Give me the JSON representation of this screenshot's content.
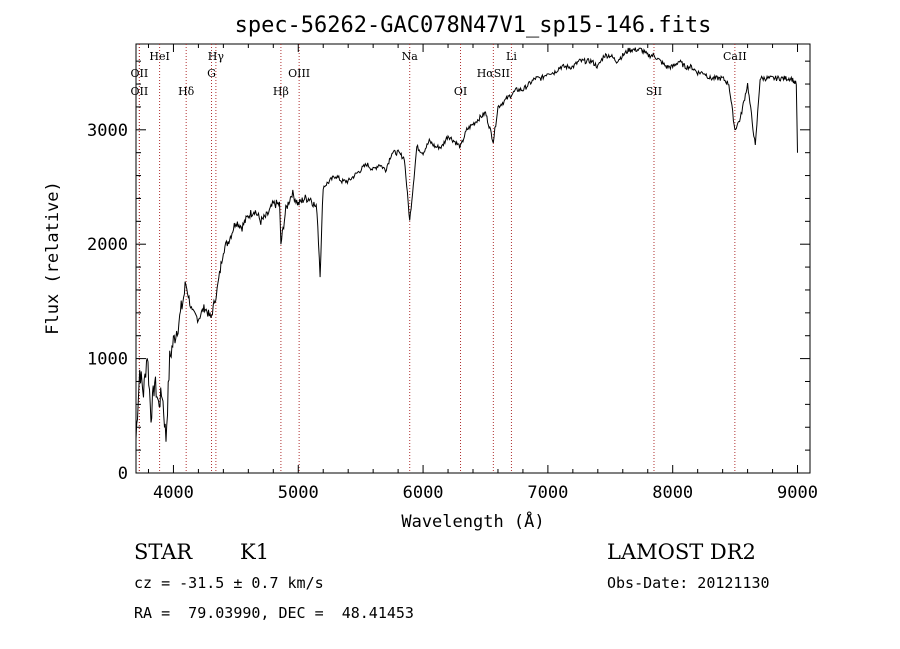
{
  "chart_data": {
    "type": "line",
    "title": "spec-56262-GAC078N47V1_sp15-146.fits",
    "xlabel": "Wavelength (Å)",
    "ylabel": "Flux (relative)",
    "xlim": [
      3700,
      9100
    ],
    "ylim": [
      0,
      3750
    ],
    "xticks": [
      4000,
      5000,
      6000,
      7000,
      8000,
      9000
    ],
    "yticks": [
      0,
      1000,
      2000,
      3000
    ],
    "grid": false,
    "series": [
      {
        "color": "#000000",
        "x": [
          3700,
          3730,
          3760,
          3790,
          3820,
          3850,
          3880,
          3910,
          3940,
          3970,
          4000,
          4050,
          4100,
          4150,
          4200,
          4250,
          4300,
          4350,
          4400,
          4450,
          4500,
          4550,
          4600,
          4650,
          4700,
          4750,
          4800,
          4850,
          4861,
          4900,
          4950,
          5000,
          5050,
          5100,
          5150,
          5175,
          5200,
          5250,
          5300,
          5350,
          5400,
          5450,
          5500,
          5550,
          5600,
          5650,
          5700,
          5750,
          5800,
          5850,
          5893,
          5950,
          6000,
          6050,
          6100,
          6150,
          6200,
          6250,
          6300,
          6350,
          6400,
          6450,
          6500,
          6563,
          6600,
          6650,
          6700,
          6750,
          6800,
          6850,
          6900,
          6950,
          7000,
          7050,
          7100,
          7150,
          7200,
          7250,
          7300,
          7350,
          7400,
          7450,
          7500,
          7550,
          7600,
          7650,
          7700,
          7750,
          7800,
          7850,
          7900,
          7950,
          8000,
          8050,
          8100,
          8150,
          8200,
          8250,
          8300,
          8350,
          8400,
          8450,
          8498,
          8542,
          8600,
          8662,
          8700,
          8750,
          8800,
          8850,
          8900,
          8950,
          8990,
          9000
        ],
        "y": [
          300,
          900,
          700,
          1050,
          500,
          800,
          600,
          700,
          300,
          1000,
          1150,
          1350,
          1650,
          1400,
          1350,
          1450,
          1350,
          1600,
          1950,
          2050,
          2200,
          2150,
          2250,
          2300,
          2200,
          2250,
          2350,
          2350,
          2000,
          2300,
          2450,
          2350,
          2400,
          2400,
          2300,
          1750,
          2500,
          2550,
          2600,
          2550,
          2550,
          2600,
          2650,
          2700,
          2650,
          2700,
          2650,
          2800,
          2800,
          2750,
          2200,
          2850,
          2800,
          2900,
          2850,
          2850,
          2950,
          2900,
          2850,
          3000,
          3050,
          3100,
          3150,
          2900,
          3200,
          3250,
          3300,
          3350,
          3350,
          3400,
          3450,
          3450,
          3500,
          3500,
          3550,
          3550,
          3550,
          3600,
          3600,
          3600,
          3550,
          3650,
          3650,
          3600,
          3650,
          3700,
          3700,
          3700,
          3650,
          3650,
          3600,
          3550,
          3550,
          3600,
          3550,
          3550,
          3500,
          3500,
          3450,
          3450,
          3450,
          3400,
          3000,
          3100,
          3400,
          2850,
          3450,
          3450,
          3450,
          3450,
          3450,
          3450,
          3400,
          2800
        ]
      }
    ],
    "lines": [
      {
        "label": "OII",
        "x": 3727,
        "row": "mid"
      },
      {
        "label": "OII",
        "x": 3727,
        "row": "low"
      },
      {
        "label": "HeI",
        "x": 3889,
        "row": "top"
      },
      {
        "label": "Hδ",
        "x": 4102,
        "row": "low"
      },
      {
        "label": "Hγ",
        "x": 4340,
        "row": "top"
      },
      {
        "label": "G",
        "x": 4305,
        "row": "mid"
      },
      {
        "label": "Hβ",
        "x": 4861,
        "row": "low"
      },
      {
        "label": "OIII",
        "x": 5007,
        "row": "mid"
      },
      {
        "label": "Na",
        "x": 5893,
        "row": "top"
      },
      {
        "label": "OI",
        "x": 6300,
        "row": "low"
      },
      {
        "label": "Li",
        "x": 6708,
        "row": "top"
      },
      {
        "label": "HαSII",
        "x": 6563,
        "row": "mid"
      },
      {
        "label": "SII",
        "x": 7850,
        "row": "low"
      },
      {
        "label": "CaII",
        "x": 8498,
        "row": "top"
      }
    ]
  },
  "info": {
    "object_class": "STAR",
    "subclass": "K1",
    "survey": "LAMOST DR2",
    "cz": "cz = -31.5 ± 0.7 km/s",
    "obs_date": "Obs-Date: 20121130",
    "radec": "RA =  79.03990, DEC =  48.41453"
  }
}
